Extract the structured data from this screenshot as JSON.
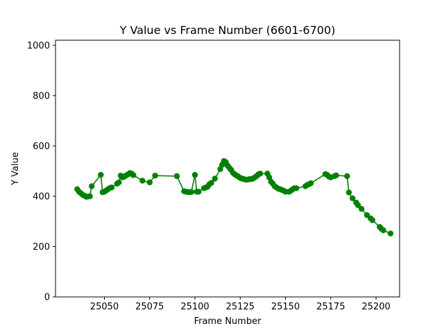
{
  "chart_data": {
    "type": "line",
    "title": "Y Value vs Frame Number (6601-6700)",
    "xlabel": "Frame Number",
    "ylabel": "Y Value",
    "xlim": [
      25023,
      25213
    ],
    "ylim": [
      0,
      1020
    ],
    "xticks": [
      25050,
      25075,
      25100,
      25125,
      25150,
      25175,
      25200
    ],
    "yticks": [
      0,
      200,
      400,
      600,
      800,
      1000
    ],
    "grid": false,
    "legend": "none",
    "series": [
      {
        "color": "#008000",
        "marker": "circle",
        "points": [
          [
            25035,
            428
          ],
          [
            25036,
            418
          ],
          [
            25037,
            412
          ],
          [
            25038,
            406
          ],
          [
            25039,
            402
          ],
          [
            25040,
            398
          ],
          [
            25041,
            399
          ],
          [
            25042,
            400
          ],
          [
            25043,
            440
          ],
          [
            25048,
            485
          ],
          [
            25049,
            416
          ],
          [
            25050,
            418
          ],
          [
            25051,
            423
          ],
          [
            25052,
            428
          ],
          [
            25053,
            433
          ],
          [
            25054,
            435
          ],
          [
            25057,
            450
          ],
          [
            25058,
            455
          ],
          [
            25059,
            482
          ],
          [
            25060,
            475
          ],
          [
            25061,
            478
          ],
          [
            25062,
            483
          ],
          [
            25063,
            487
          ],
          [
            25064,
            492
          ],
          [
            25065,
            490
          ],
          [
            25066,
            484
          ],
          [
            25071,
            462
          ],
          [
            25075,
            455
          ],
          [
            25078,
            482
          ],
          [
            25090,
            480
          ],
          [
            25094,
            420
          ],
          [
            25095,
            418
          ],
          [
            25096,
            417
          ],
          [
            25097,
            416
          ],
          [
            25098,
            417
          ],
          [
            25100,
            485
          ],
          [
            25101,
            418
          ],
          [
            25102,
            418
          ],
          [
            25105,
            432
          ],
          [
            25106,
            435
          ],
          [
            25107,
            438
          ],
          [
            25108,
            448
          ],
          [
            25109,
            453
          ],
          [
            25111,
            470
          ],
          [
            25114,
            508
          ],
          [
            25115,
            525
          ],
          [
            25116,
            540
          ],
          [
            25117,
            536
          ],
          [
            25118,
            522
          ],
          [
            25119,
            513
          ],
          [
            25120,
            505
          ],
          [
            25121,
            493
          ],
          [
            25122,
            487
          ],
          [
            25123,
            482
          ],
          [
            25124,
            478
          ],
          [
            25125,
            473
          ],
          [
            25126,
            470
          ],
          [
            25127,
            468
          ],
          [
            25128,
            466
          ],
          [
            25129,
            466
          ],
          [
            25130,
            468
          ],
          [
            25131,
            468
          ],
          [
            25132,
            470
          ],
          [
            25133,
            475
          ],
          [
            25134,
            480
          ],
          [
            25135,
            487
          ],
          [
            25136,
            490
          ],
          [
            25140,
            490
          ],
          [
            25141,
            475
          ],
          [
            25142,
            458
          ],
          [
            25143,
            450
          ],
          [
            25144,
            440
          ],
          [
            25145,
            435
          ],
          [
            25146,
            430
          ],
          [
            25147,
            428
          ],
          [
            25148,
            425
          ],
          [
            25149,
            422
          ],
          [
            25150,
            418
          ],
          [
            25152,
            418
          ],
          [
            25153,
            422
          ],
          [
            25154,
            428
          ],
          [
            25155,
            432
          ],
          [
            25156,
            432
          ],
          [
            25161,
            440
          ],
          [
            25162,
            445
          ],
          [
            25163,
            448
          ],
          [
            25164,
            452
          ],
          [
            25172,
            488
          ],
          [
            25173,
            485
          ],
          [
            25174,
            478
          ],
          [
            25175,
            475
          ],
          [
            25177,
            480
          ],
          [
            25178,
            483
          ],
          [
            25184,
            480
          ],
          [
            25185,
            415
          ],
          [
            25187,
            392
          ],
          [
            25189,
            375
          ],
          [
            25190,
            365
          ],
          [
            25192,
            350
          ],
          [
            25195,
            325
          ],
          [
            25197,
            312
          ],
          [
            25198,
            305
          ],
          [
            25202,
            278
          ],
          [
            25203,
            270
          ],
          [
            25204,
            265
          ],
          [
            25208,
            252
          ]
        ]
      }
    ]
  }
}
